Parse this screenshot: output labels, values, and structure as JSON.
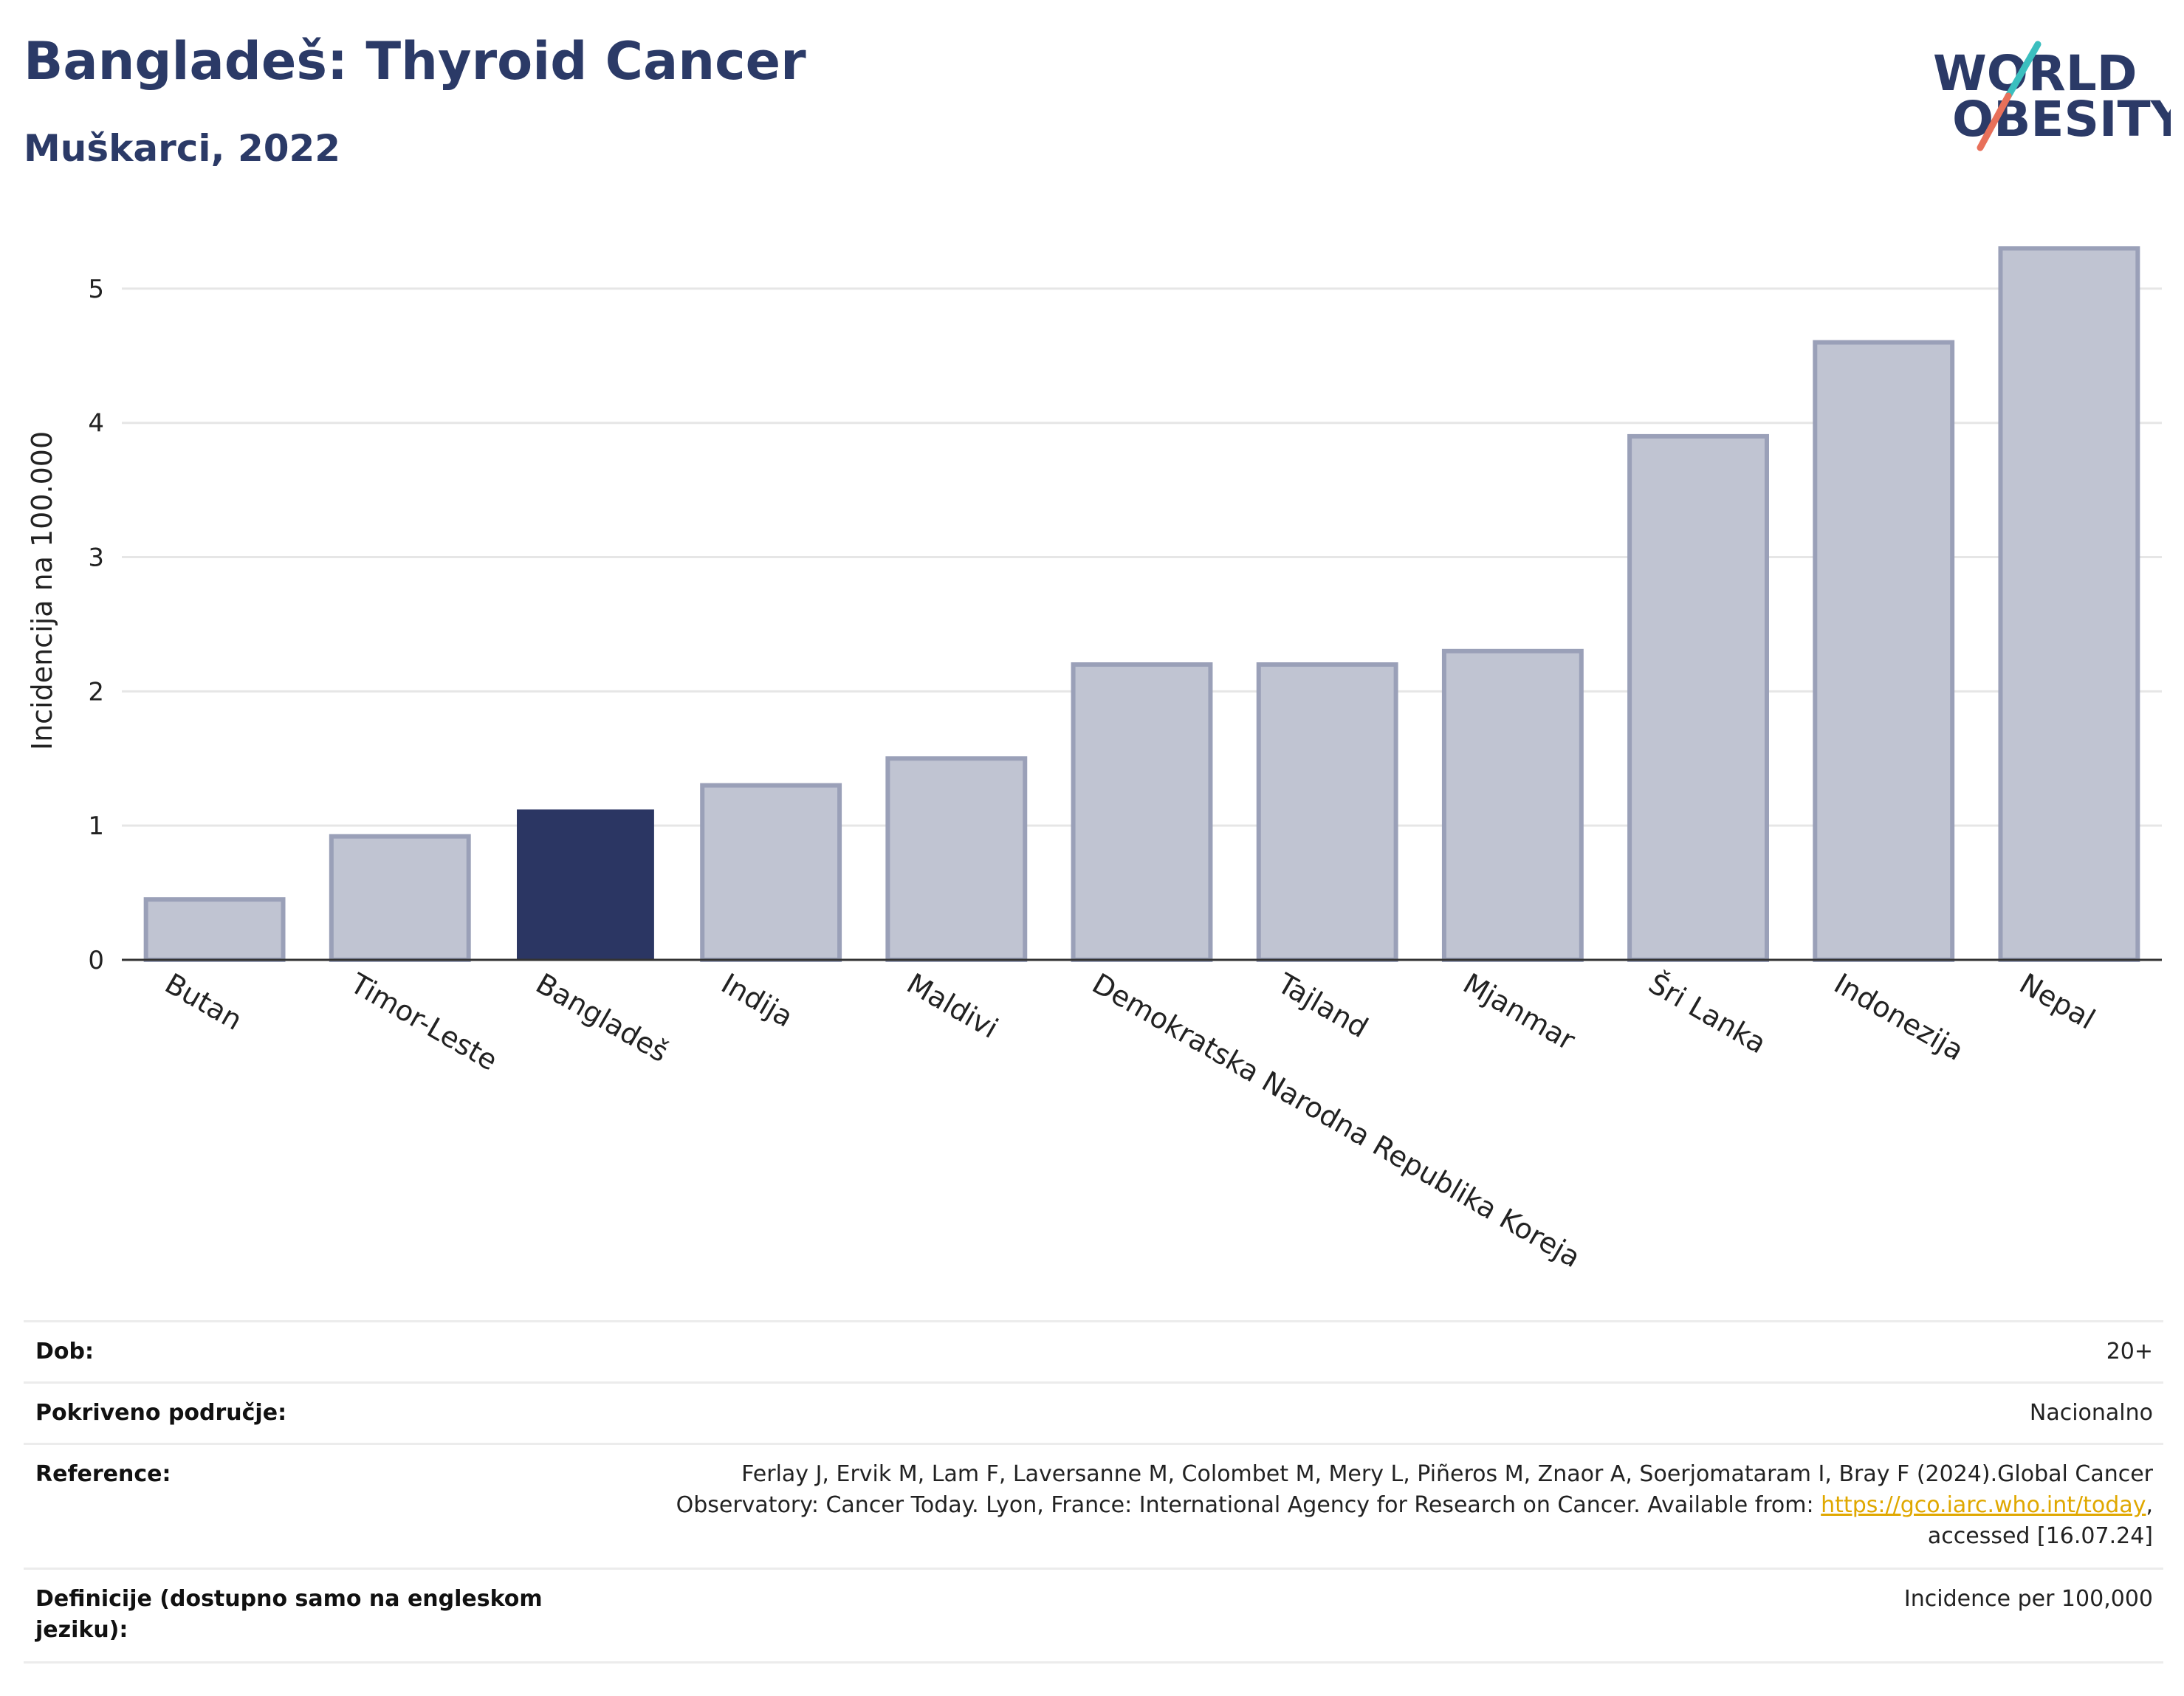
{
  "header": {
    "title": "Bangladeš: Thyroid Cancer",
    "subtitle": "Muškarci, 2022"
  },
  "logo": {
    "line1": "WORLD",
    "line2": "OBESITY",
    "text_color": "#2b3a67",
    "slash_colors": [
      "#e8705a",
      "#3bbfbf"
    ]
  },
  "chart_data": {
    "type": "bar",
    "categories": [
      "Butan",
      "Timor-Leste",
      "Bangladeš",
      "Indija",
      "Maldivi",
      "Demokratska Narodna Republika Koreja",
      "Tajland",
      "Mjanmar",
      "Šri Lanka",
      "Indonezija",
      "Nepal"
    ],
    "values": [
      0.45,
      0.92,
      1.12,
      1.3,
      1.5,
      2.2,
      2.2,
      2.3,
      3.9,
      4.6,
      5.3
    ],
    "highlight": "Bangladeš",
    "ylabel": "Incidencija na 100.000",
    "xlabel": "",
    "ylim": [
      0,
      5.5
    ],
    "yticks": [
      0,
      1,
      2,
      3,
      4,
      5
    ],
    "grid": true,
    "colors": {
      "bar": "#c0c4d2",
      "bar_border": "#9aa0b8",
      "highlight": "#2b3663",
      "grid": "#e6e6e6",
      "axis": "#333333"
    }
  },
  "info": {
    "age_label": "Dob:",
    "age_value": "20+",
    "area_label": "Pokriveno područje:",
    "area_value": "Nacionalno",
    "ref_label": "Reference:",
    "ref_line1": "Ferlay J, Ervik M, Lam F, Laversanne M, Colombet M, Mery L, Piñeros M, Znaor A, Soerjomataram I, Bray F (2024).Global Cancer",
    "ref_line2_text": "Observatory: Cancer Today. Lyon, France: International Agency for Research on Cancer. Available from:",
    "ref_link": "https://gco.iarc.who.int/today",
    "ref_line2_end": ",",
    "ref_line3": "accessed [16.07.24]",
    "def_label": "Definicije (dostupno samo na engleskom jeziku):",
    "def_value": "Incidence per 100,000"
  }
}
